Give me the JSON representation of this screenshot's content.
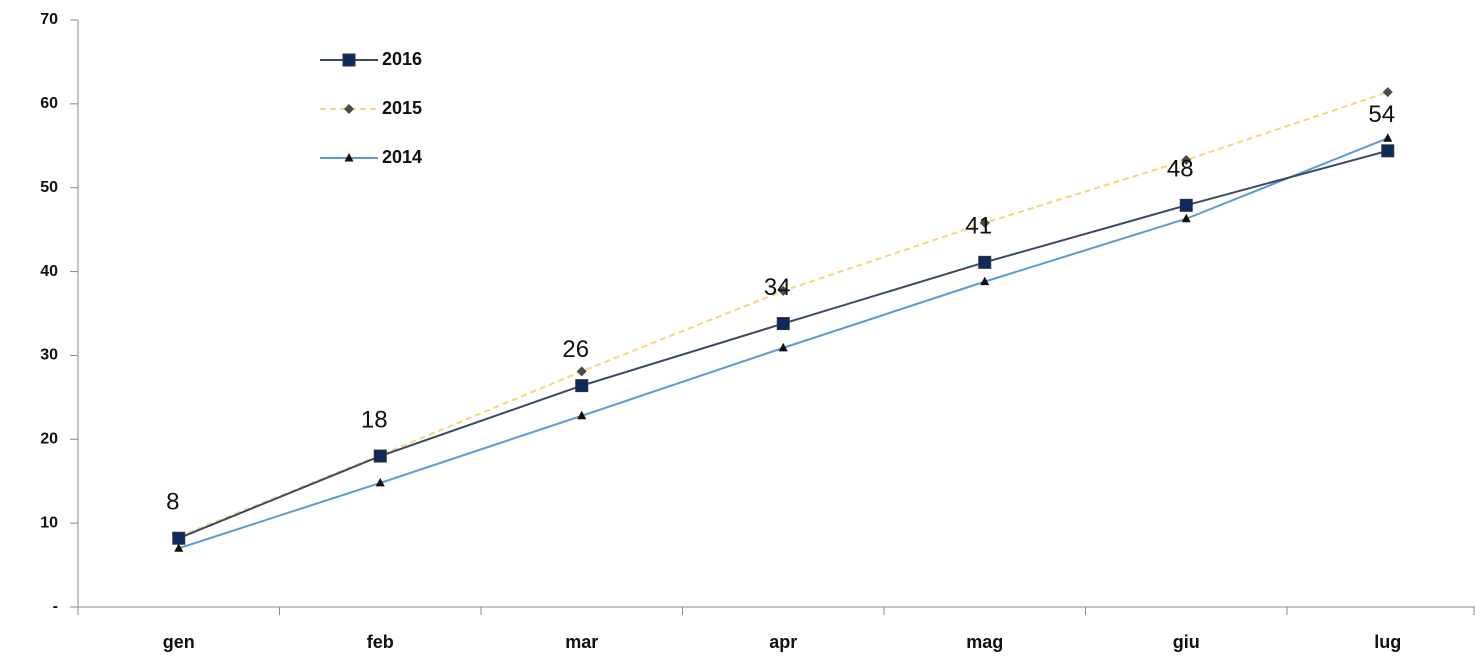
{
  "chart_data": {
    "type": "line",
    "categories": [
      "gen",
      "feb",
      "mar",
      "apr",
      "mag",
      "giu",
      "lug"
    ],
    "series": [
      {
        "name": "2016",
        "color": "#3b4a63",
        "marker": "square",
        "marker_color": "#0d2a5e",
        "dashed": false,
        "values": [
          8.2,
          18.0,
          26.4,
          33.8,
          41.1,
          47.9,
          54.4
        ],
        "value_labels": [
          "8",
          "18",
          "26",
          "34",
          "41",
          "48",
          "54"
        ]
      },
      {
        "name": "2015",
        "color": "#f5d77a",
        "marker": "diamond",
        "marker_color": "#4a4a4a",
        "dashed": true,
        "values": [
          8.4,
          18.1,
          28.1,
          37.7,
          45.8,
          53.3,
          61.4
        ]
      },
      {
        "name": "2014",
        "color": "#5b9bd5",
        "marker": "triangle",
        "marker_color": "#111111",
        "dashed": false,
        "values": [
          7.0,
          14.8,
          22.8,
          30.9,
          38.8,
          46.3,
          55.9
        ]
      }
    ],
    "ylim": [
      0,
      70
    ],
    "yticks": [
      {
        "value": 0,
        "label": "-"
      },
      10,
      20,
      30,
      40,
      50,
      60,
      70
    ],
    "grid": false,
    "legend": "upper left"
  }
}
